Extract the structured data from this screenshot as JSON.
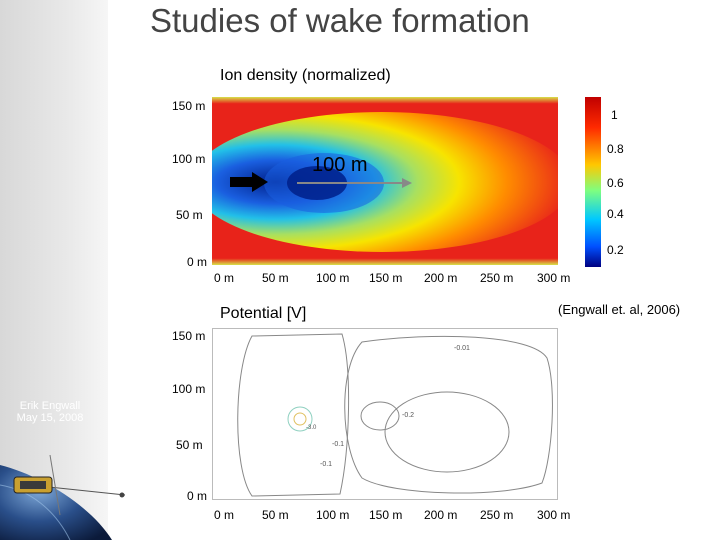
{
  "slide": {
    "title": "Studies of wake formation",
    "author_name": "Erik Engwall",
    "author_date": "May 15, 2008",
    "citation": "(Engwall et. al, 2006)"
  },
  "density_plot": {
    "title": "Ion density (normalized)",
    "annotation": "100 m",
    "y_ticks": [
      "150 m",
      "100 m",
      "50 m",
      "0 m"
    ],
    "x_ticks": [
      "0 m",
      "50 m",
      "100 m",
      "150 m",
      "200 m",
      "250 m",
      "300 m"
    ],
    "colorbar_ticks": [
      "1",
      "0.8",
      "0.6",
      "0.4",
      "0.2"
    ]
  },
  "potential_plot": {
    "title": "Potential [V]",
    "y_ticks": [
      "150 m",
      "100 m",
      "50 m",
      "0 m"
    ],
    "x_ticks": [
      "0 m",
      "50 m",
      "100 m",
      "150 m",
      "200 m",
      "250 m",
      "300 m"
    ],
    "contour_labels": [
      "-0.01",
      "-0.2",
      "-0.1",
      "-0.1",
      "-3.0"
    ]
  }
}
